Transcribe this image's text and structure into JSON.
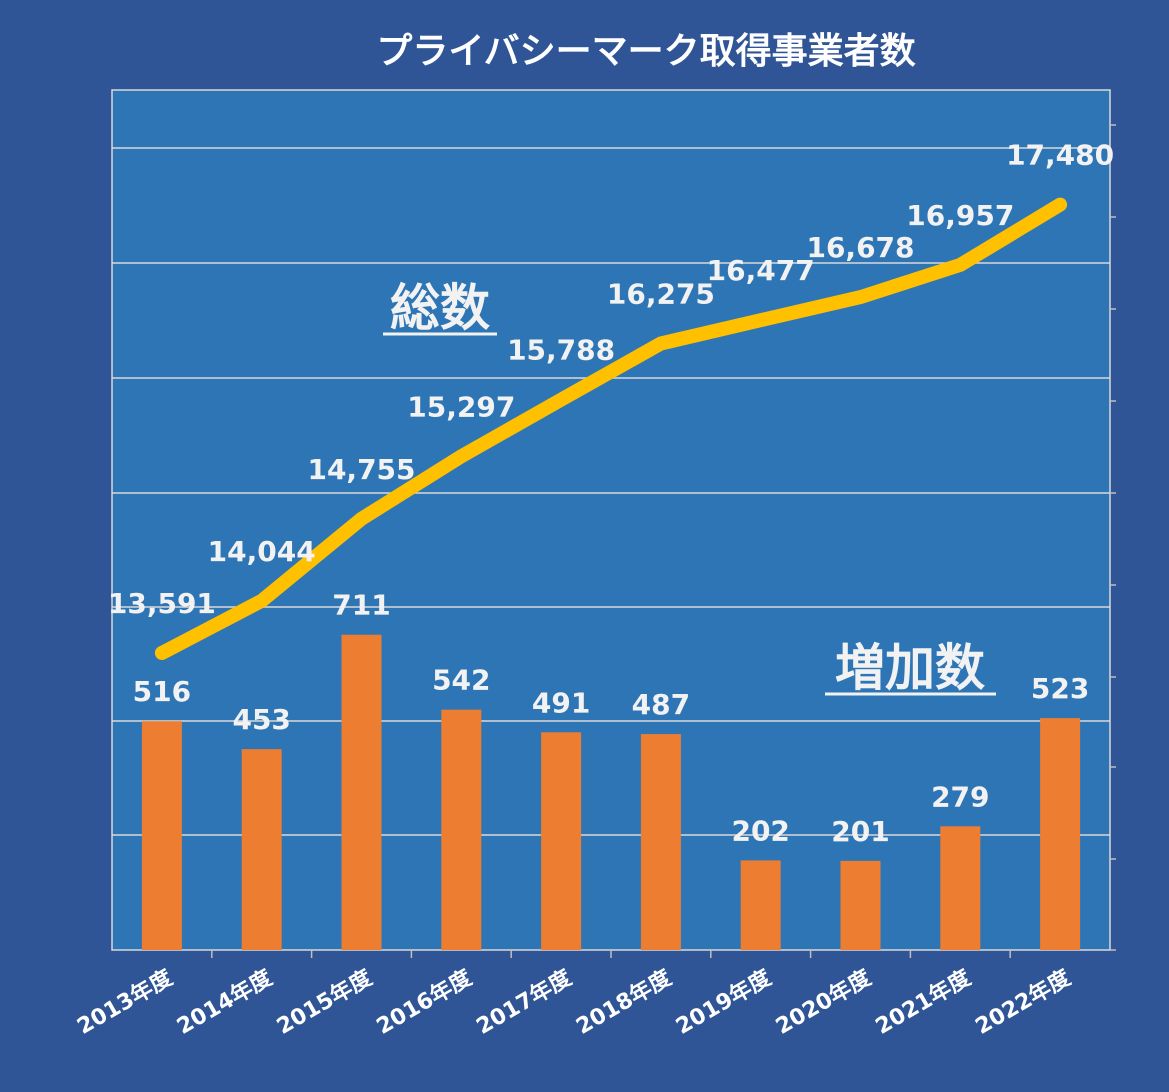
{
  "chart_data": {
    "type": "bar",
    "title": "プライバシーマーク取得事業者数",
    "categories": [
      "2013年度",
      "2014年度",
      "2015年度",
      "2016年度",
      "2017年度",
      "2018年度",
      "2019年度",
      "2020年度",
      "2021年度",
      "2022年度"
    ],
    "series": [
      {
        "name": "増加数",
        "type": "bar",
        "values": [
          516,
          453,
          711,
          542,
          491,
          487,
          202,
          201,
          279,
          523
        ],
        "color": "#ed7d31"
      },
      {
        "name": "総数",
        "type": "line",
        "values": [
          13591,
          14044,
          14755,
          15297,
          15788,
          16275,
          16477,
          16678,
          16957,
          17480
        ],
        "labels": [
          "13,591",
          "14,044",
          "14,755",
          "15,297",
          "15,788",
          "16,275",
          "16,477",
          "16,678",
          "16,957",
          "17,480"
        ],
        "color": "#ffc000"
      }
    ],
    "annotations": [
      "総数",
      "増加数"
    ],
    "grid": true,
    "legend": "none",
    "plot_background": "#2e75b6",
    "page_background": "#2f5596"
  }
}
